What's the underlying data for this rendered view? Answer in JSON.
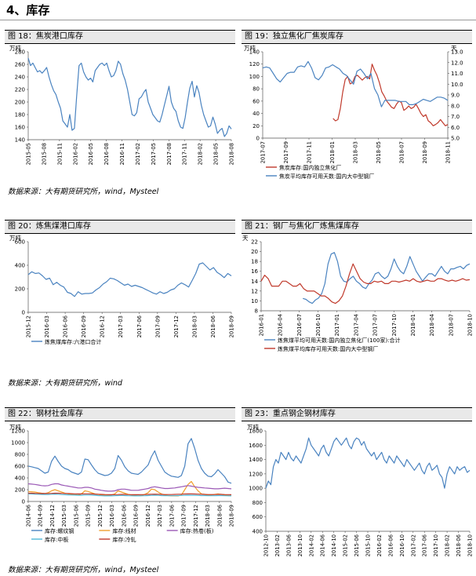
{
  "section_title": "4、库存",
  "source_1": "数据来源：大有期货研究所，wind，Mysteel",
  "source_2": "数据来源：大有期货研究所，wind",
  "source_3": "数据来源：大有期货研究所，wind，Mysteel",
  "colors": {
    "blue": "#4a83c0",
    "red": "#c0392b",
    "orange": "#f0a030",
    "purple": "#9b59b6",
    "cyan": "#4fb8d8",
    "grid": "#d9d9d9"
  },
  "chart_data": [
    {
      "id": "c18",
      "type": "line",
      "title": "图 18：焦炭港口库存",
      "unit_left": "万吨",
      "ylim": [
        140,
        280
      ],
      "yticks": [
        140,
        160,
        180,
        200,
        220,
        240,
        260,
        280
      ],
      "xlabels": [
        "2015-05",
        "2015-08",
        "2015-11",
        "2016-02",
        "2016-05",
        "2016-08",
        "2016-11",
        "2017-02",
        "2017-05",
        "2017-08",
        "2017-11",
        "2018-02",
        "2018-05",
        "2018-08"
      ],
      "series": [
        {
          "color": "blue",
          "axis": "left",
          "values": [
            270,
            258,
            262,
            255,
            248,
            250,
            246,
            250,
            255,
            240,
            228,
            218,
            212,
            200,
            190,
            170,
            165,
            160,
            180,
            155,
            158,
            210,
            258,
            262,
            248,
            240,
            235,
            238,
            232,
            250,
            255,
            260,
            262,
            258,
            262,
            250,
            240,
            242,
            250,
            265,
            260,
            245,
            235,
            220,
            200,
            180,
            178,
            183,
            205,
            208,
            215,
            220,
            200,
            190,
            180,
            175,
            170,
            168,
            180,
            195,
            210,
            225,
            200,
            190,
            185,
            170,
            160,
            158,
            175,
            200,
            222,
            233,
            208,
            226,
            215,
            195,
            180,
            170,
            160,
            162,
            176,
            165,
            150,
            155,
            158,
            145,
            150,
            162,
            157
          ]
        }
      ]
    },
    {
      "id": "c19",
      "type": "line",
      "title": "图 19：独立焦化厂焦炭库存",
      "unit_left": "万吨",
      "unit_right": "天",
      "ylim": [
        0,
        140
      ],
      "yticks": [
        0,
        20,
        40,
        60,
        80,
        100,
        120,
        140
      ],
      "ylim_right": [
        5.0,
        13.0
      ],
      "yticks_right": [
        "5.0",
        "6.0",
        "7.0",
        "8.0",
        "9.0",
        "10.0",
        "11.0",
        "12.0",
        "13.0"
      ],
      "xlabels": [
        "2017-07",
        "2017-09",
        "2017-11",
        "2018-01",
        "2018-03",
        "2018-05",
        "2018-07",
        "2018-09",
        "2018-11"
      ],
      "legend": [
        "焦炭库存:国内独立焦化厂",
        "焦炭平均库存可用天数:国内大中型钢厂"
      ],
      "series": [
        {
          "name": "焦炭库存:国内独立焦化厂",
          "color": "red",
          "axis": "left",
          "x_start": 0.38,
          "values": [
            32,
            28,
            30,
            48,
            75,
            95,
            100,
            88,
            90,
            100,
            102,
            98,
            94,
            98,
            100,
            96,
            120,
            110,
            102,
            90,
            75,
            68,
            60,
            55,
            50,
            48,
            55,
            60,
            58,
            45,
            48,
            52,
            48,
            50,
            55,
            48,
            40,
            35,
            38,
            28,
            25,
            20,
            22,
            25,
            30,
            25,
            20,
            22
          ]
        },
        {
          "name": "焦炭平均库存可用天数:国内大中型钢厂",
          "color": "blue",
          "axis": "right",
          "x_start": 0,
          "values": [
            11.5,
            11.6,
            11.5,
            11.0,
            10.5,
            10.2,
            10.6,
            11.0,
            11.1,
            11.1,
            11.6,
            11.7,
            11.6,
            12.1,
            11.5,
            10.6,
            10.4,
            10.8,
            11.5,
            11.6,
            11.8,
            11.6,
            11.4,
            11.0,
            10.8,
            10.4,
            10.0,
            11.2,
            11.4,
            11.0,
            10.5,
            11.0,
            9.6,
            9.0,
            7.9,
            8.5,
            8.5,
            8.5,
            8.5,
            8.4,
            8.4,
            8.4,
            8.1,
            8.1,
            8.2,
            8.4,
            8.6,
            8.5,
            8.4,
            8.6,
            8.8,
            8.8,
            8.7,
            8.5
          ]
        }
      ]
    },
    {
      "id": "c20",
      "type": "line",
      "title": "图 20：炼焦煤港口库存",
      "unit_left": "万吨",
      "ylim": [
        0,
        600
      ],
      "yticks": [
        0,
        200,
        400,
        600
      ],
      "xlabels": [
        "2015-12",
        "2016-03",
        "2016-06",
        "2016-09",
        "2016-12",
        "2017-03",
        "2017-06",
        "2017-09",
        "2017-12",
        "2018-03",
        "2018-06",
        "2018-09"
      ],
      "legend": [
        "炼焦煤库存:六港口合计"
      ],
      "series": [
        {
          "name": "炼焦煤库存:六港口合计",
          "color": "blue",
          "axis": "left",
          "values": [
            320,
            345,
            330,
            335,
            310,
            280,
            290,
            235,
            255,
            230,
            215,
            170,
            160,
            135,
            175,
            155,
            160,
            160,
            165,
            190,
            210,
            240,
            260,
            290,
            285,
            270,
            250,
            230,
            240,
            220,
            230,
            220,
            210,
            195,
            180,
            165,
            155,
            175,
            160,
            170,
            190,
            200,
            230,
            250,
            235,
            215,
            270,
            330,
            410,
            420,
            390,
            360,
            380,
            340,
            320,
            295,
            330,
            310
          ]
        }
      ]
    },
    {
      "id": "c21",
      "type": "line",
      "title": "图 21：钢厂与焦化厂炼焦煤库存",
      "unit_left": "天",
      "ylim": [
        8,
        22
      ],
      "yticks": [
        8,
        10,
        12,
        14,
        16,
        18,
        20,
        22
      ],
      "xlabels": [
        "2016-01",
        "2016-04",
        "2016-07",
        "2016-10",
        "2017-01",
        "2017-04",
        "2017-07",
        "2017-10",
        "2018-01",
        "2018-04",
        "2018-07",
        "2018-10"
      ],
      "legend": [
        "炼焦煤平均可用天数:国内独立焦化厂(100家):合计",
        "炼焦煤平均库存可用天数:国内大中型钢厂"
      ],
      "series": [
        {
          "name": "炼焦煤平均可用天数:国内独立焦化厂(100家):合计",
          "color": "blue",
          "axis": "left",
          "x_start": 0.2,
          "values": [
            10.5,
            10.3,
            9.8,
            9.5,
            10.2,
            10.6,
            11.5,
            13.5,
            17.5,
            19.5,
            19.8,
            18.0,
            15.0,
            14.0,
            13.8,
            14.5,
            15.0,
            14.0,
            13.5,
            12.8,
            12.5,
            13.5,
            14.2,
            15.5,
            15.8,
            15.0,
            14.5,
            15.0,
            16.5,
            18.5,
            17.0,
            16.0,
            15.5,
            17.0,
            19.0,
            17.5,
            16.0,
            15.0,
            14.0,
            14.8,
            15.5,
            15.5,
            15.0,
            16.0,
            17.0,
            16.0,
            15.5,
            16.5,
            16.5,
            16.8,
            17.0,
            16.5,
            17.2,
            17.5
          ]
        },
        {
          "name": "炼焦煤平均库存可用天数:国内大中型钢厂",
          "color": "red",
          "axis": "left",
          "x_start": 0,
          "values": [
            14.0,
            15.2,
            14.5,
            13.0,
            13.0,
            13.0,
            14.0,
            14.0,
            13.5,
            13.0,
            13.0,
            13.5,
            12.5,
            12.0,
            12.0,
            12.0,
            11.5,
            11.0,
            11.0,
            10.5,
            9.8,
            9.5,
            10.0,
            11.0,
            13.0,
            15.5,
            17.5,
            16.0,
            14.5,
            13.8,
            13.5,
            13.5,
            14.0,
            13.8,
            14.0,
            13.5,
            13.5,
            14.0,
            14.0,
            13.8,
            14.0,
            14.2,
            14.0,
            14.5,
            14.0,
            13.8,
            14.0,
            14.2,
            14.0,
            14.0,
            14.5,
            14.5,
            14.2,
            14.0,
            14.2,
            14.0,
            14.2,
            14.5,
            14.2,
            14.3
          ]
        }
      ]
    },
    {
      "id": "c22",
      "type": "line",
      "title": "图 22：钢材社会库存",
      "unit_left": "万吨",
      "ylim": [
        0,
        1200
      ],
      "yticks": [
        0,
        200,
        400,
        600,
        800,
        1000,
        1200
      ],
      "xlabels": [
        "2014-06",
        "2014-09",
        "2014-12",
        "2015-03",
        "2015-06",
        "2015-09",
        "2015-12",
        "2016-03",
        "2016-06",
        "2016-09",
        "2016-12",
        "2017-03",
        "2017-06",
        "2017-09",
        "2017-12",
        "2018-03",
        "2018-06",
        "2018-09"
      ],
      "legend": [
        "库存:螺纹钢",
        "库存:线材",
        "库存:热卷(板)",
        "库存:中板",
        "库存:冷轧"
      ],
      "series": [
        {
          "name": "库存:螺纹钢",
          "color": "blue",
          "axis": "left",
          "values": [
            600,
            590,
            575,
            560,
            520,
            480,
            500,
            680,
            770,
            680,
            600,
            560,
            540,
            500,
            480,
            460,
            500,
            720,
            710,
            620,
            540,
            480,
            460,
            440,
            450,
            480,
            560,
            780,
            700,
            590,
            520,
            480,
            470,
            460,
            500,
            560,
            620,
            760,
            860,
            700,
            600,
            500,
            460,
            430,
            420,
            410,
            440,
            600,
            980,
            1070,
            900,
            700,
            560,
            480,
            430,
            420,
            470,
            540,
            480,
            420,
            330,
            310
          ]
        },
        {
          "name": "库存:线材",
          "color": "orange",
          "axis": "left",
          "values": [
            170,
            165,
            160,
            150,
            140,
            135,
            150,
            180,
            200,
            180,
            160,
            140,
            130,
            120,
            115,
            110,
            130,
            180,
            170,
            150,
            130,
            120,
            110,
            105,
            105,
            110,
            130,
            180,
            160,
            140,
            120,
            110,
            100,
            95,
            100,
            120,
            150,
            210,
            200,
            160,
            130,
            110,
            100,
            95,
            95,
            95,
            110,
            200,
            290,
            340,
            250,
            180,
            130,
            120,
            110,
            110,
            120,
            130,
            120,
            110,
            100,
            95
          ]
        },
        {
          "name": "库存:热卷(板)",
          "color": "purple",
          "axis": "left",
          "values": [
            300,
            295,
            290,
            280,
            270,
            265,
            270,
            290,
            300,
            300,
            280,
            270,
            260,
            250,
            240,
            230,
            230,
            240,
            240,
            230,
            210,
            200,
            190,
            180,
            175,
            175,
            180,
            200,
            210,
            210,
            200,
            190,
            190,
            190,
            200,
            210,
            220,
            240,
            250,
            240,
            230,
            220,
            220,
            225,
            230,
            240,
            250,
            260,
            270,
            260,
            250,
            240,
            235,
            230,
            225,
            220,
            215,
            215,
            220,
            225,
            220,
            215
          ]
        },
        {
          "name": "库存:中板",
          "color": "cyan",
          "axis": "left",
          "values": [
            130,
            128,
            125,
            122,
            120,
            118,
            118,
            122,
            125,
            122,
            118,
            115,
            112,
            110,
            108,
            105,
            105,
            110,
            110,
            108,
            105,
            100,
            98,
            95,
            95,
            95,
            98,
            100,
            102,
            100,
            98,
            96,
            95,
            95,
            96,
            98,
            100,
            104,
            106,
            104,
            100,
            98,
            97,
            97,
            98,
            100,
            102,
            104,
            106,
            105,
            104,
            102,
            100,
            100,
            98,
            98,
            98,
            100,
            100,
            98,
            96,
            95
          ]
        },
        {
          "name": "库存:冷轧",
          "color": "red",
          "axis": "left",
          "values": [
            140,
            140,
            138,
            136,
            135,
            135,
            136,
            138,
            140,
            140,
            138,
            136,
            135,
            132,
            130,
            128,
            128,
            130,
            130,
            128,
            125,
            122,
            120,
            118,
            116,
            115,
            116,
            118,
            120,
            120,
            118,
            116,
            115,
            115,
            116,
            118,
            120,
            122,
            124,
            122,
            120,
            118,
            118,
            118,
            120,
            122,
            124,
            126,
            128,
            128,
            126,
            124,
            122,
            120,
            118,
            118,
            118,
            120,
            120,
            118,
            116,
            115
          ]
        }
      ]
    },
    {
      "id": "c23",
      "type": "line",
      "title": "图 23：重点钢企钢材库存",
      "unit_left": "万吨",
      "ylim": [
        400,
        1800
      ],
      "yticks": [
        400,
        600,
        800,
        1000,
        1200,
        1400,
        1600,
        1800
      ],
      "xlabels": [
        "2012-10",
        "2013-02",
        "2013-06",
        "2013-10",
        "2014-02",
        "2014-06",
        "2014-10",
        "2015-02",
        "2015-06",
        "2015-10",
        "2016-02",
        "2016-06",
        "2016-10",
        "2017-02",
        "2017-06",
        "2017-10",
        "2018-02",
        "2018-06",
        "2018-10"
      ],
      "series": [
        {
          "color": "blue",
          "axis": "left",
          "values": [
            1000,
            1100,
            1050,
            1300,
            1400,
            1350,
            1500,
            1450,
            1400,
            1500,
            1420,
            1380,
            1450,
            1400,
            1350,
            1450,
            1550,
            1700,
            1600,
            1550,
            1500,
            1450,
            1550,
            1600,
            1500,
            1450,
            1550,
            1650,
            1700,
            1650,
            1600,
            1650,
            1700,
            1600,
            1550,
            1650,
            1700,
            1680,
            1600,
            1650,
            1550,
            1500,
            1450,
            1500,
            1400,
            1450,
            1500,
            1400,
            1350,
            1450,
            1400,
            1350,
            1450,
            1400,
            1350,
            1300,
            1400,
            1350,
            1300,
            1250,
            1300,
            1350,
            1250,
            1200,
            1300,
            1350,
            1250,
            1280,
            1320,
            1200,
            1150,
            1000,
            1200,
            1300,
            1250,
            1200,
            1300,
            1250,
            1280,
            1300,
            1220,
            1250
          ]
        }
      ]
    }
  ]
}
